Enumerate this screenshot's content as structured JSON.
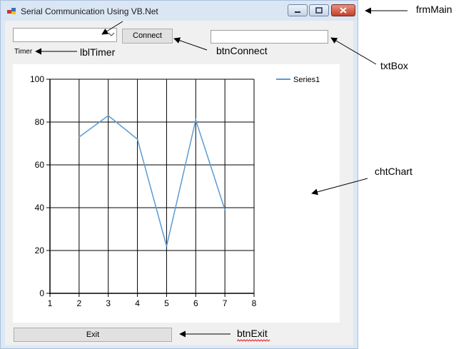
{
  "window": {
    "title": "Serial Communication Using VB.Net"
  },
  "form": {
    "combo_value": "",
    "connect_label": "Connect",
    "textbox_value": "",
    "timer_label": "Timer",
    "exit_label": "Exit"
  },
  "annotations": {
    "frmMain": "frmMain",
    "lblTimer": "lblTimer",
    "btnConnect": "btnConnect",
    "txtBox": "txtBox",
    "chtChart": "chtChart",
    "btnExit": "btnExit"
  },
  "colors": {
    "series": "#5b9bd5",
    "close": "#c84a34"
  },
  "chart_data": {
    "type": "line",
    "title": "",
    "xlabel": "",
    "ylabel": "",
    "xlim": [
      1,
      8
    ],
    "ylim": [
      0,
      100
    ],
    "x_ticks": [
      1,
      2,
      3,
      4,
      5,
      6,
      7,
      8
    ],
    "y_ticks": [
      0,
      20,
      40,
      60,
      80,
      100
    ],
    "grid": true,
    "legend": "top-right",
    "series": [
      {
        "name": "Series1",
        "x": [
          2,
          3,
          4,
          5,
          6,
          7
        ],
        "y": [
          73,
          83,
          72,
          22,
          81,
          39
        ]
      }
    ]
  }
}
